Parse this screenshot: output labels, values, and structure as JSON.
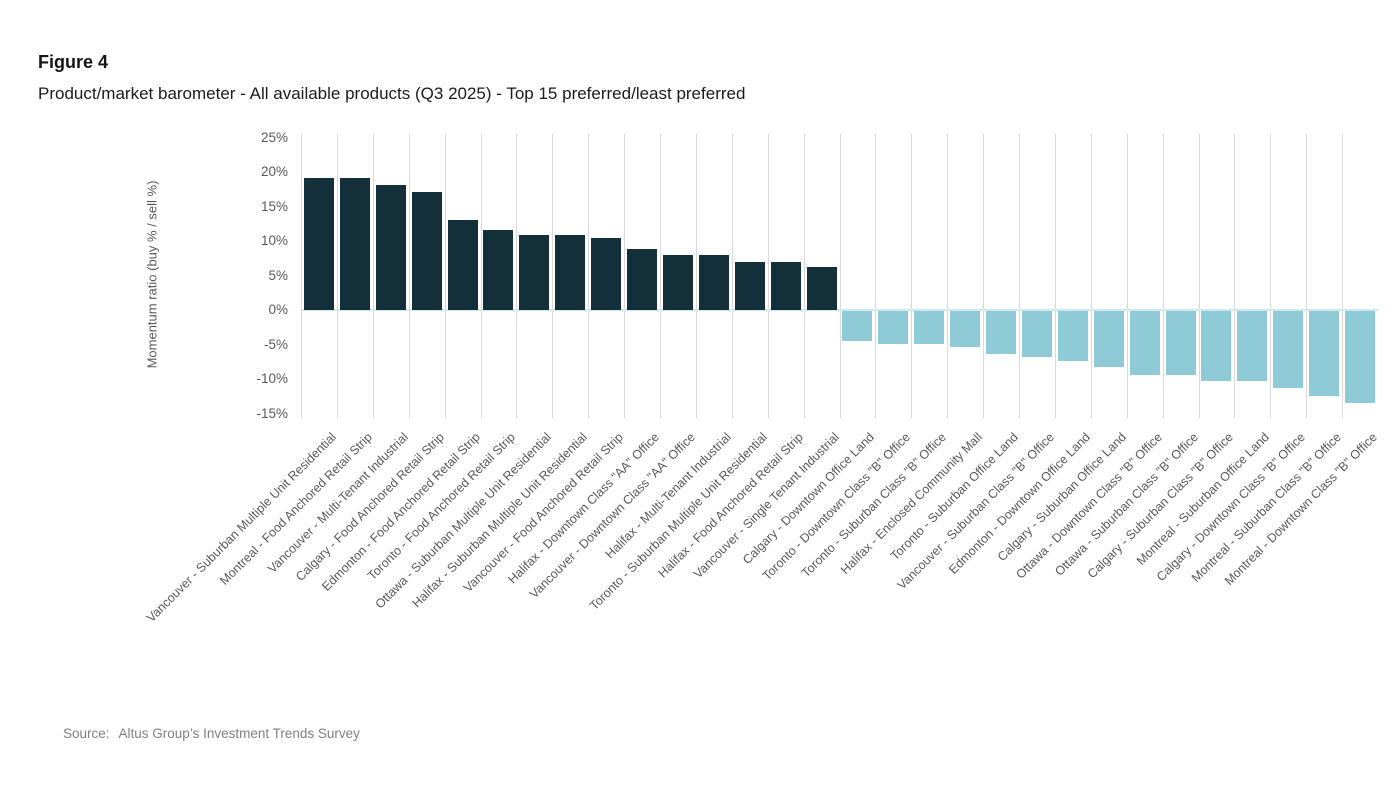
{
  "figure": {
    "label": "Figure 4",
    "title": "Product/market barometer - All available products (Q3 2025) - Top 15 preferred/least preferred"
  },
  "source": {
    "label": "Source:",
    "text": "Altus Group’s Investment Trends Survey"
  },
  "chart_data": {
    "type": "bar",
    "title": "Product/market barometer - All available products (Q3 2025) - Top 15 preferred/least preferred",
    "xlabel": "",
    "ylabel": "Momentum ratio (buy % / sell %)",
    "ylim": [
      -16,
      26
    ],
    "y_ticks": [
      25,
      20,
      15,
      10,
      5,
      0,
      -5,
      -10,
      -15
    ],
    "y_tick_suffix": "%",
    "grid": "vertical-only",
    "legend": "none",
    "positive_color": "#132f3a",
    "negative_color": "#8fcbd7",
    "zero_line_color": "#cde9f0",
    "gridline_color": "#d9d9d9",
    "categories": [
      "Vancouver - Suburban Multiple Unit Residential",
      "Montreal - Food Anchored Retail Strip",
      "Vancouver - Multi-Tenant Industrial",
      "Calgary - Food Anchored Retail Strip",
      "Edmonton - Food Anchored Retail Strip",
      "Toronto - Food Anchored Retail Strip",
      "Ottawa - Suburban Multiple Unit Residential",
      "Halifax - Suburban Multiple Unit Residential",
      "Vancouver - Food Anchored Retail Strip",
      "Halifax - Downtown Class \"AA\" Office",
      "Vancouver - Downtown Class \"AA\" Office",
      "Halifax - Multi-Tenant Industrial",
      "Toronto - Suburban Multiple Unit Residential",
      "Halifax - Food Anchored Retail Strip",
      "Vancouver - Single Tenant Industrial",
      "Calgary - Downtown Office Land",
      "Toronto - Downtown Class \"B\" Office",
      "Toronto - Suburban Class \"B\" Office",
      "Halifax - Enclosed Community Mall",
      "Toronto - Suburban Office Land",
      "Vancouver - Suburban Class \"B\" Office",
      "Edmonton - Downtown Office Land",
      "Calgary - Suburban Office Land",
      "Ottawa - Downtown Class \"B\" Office",
      "Ottawa - Suburban Class \"B\" Office",
      "Calgary - Suburban Class \"B\" Office",
      "Montreal - Suburban Office Land",
      "Calgary - Downtown Class \"B\" Office",
      "Montreal - Suburban Class \"B\" Office",
      "Montreal - Downtown Class \"B\" Office"
    ],
    "values": [
      19.2,
      19.2,
      18.1,
      17.1,
      13.0,
      11.6,
      10.9,
      10.9,
      10.5,
      8.9,
      8.0,
      8.0,
      6.9,
      6.9,
      6.3,
      -4.3,
      -4.8,
      -4.8,
      -5.2,
      -6.2,
      -6.7,
      -7.2,
      -8.1,
      -9.3,
      -9.3,
      -10.1,
      -10.1,
      -11.2,
      -12.3,
      -13.4
    ]
  }
}
